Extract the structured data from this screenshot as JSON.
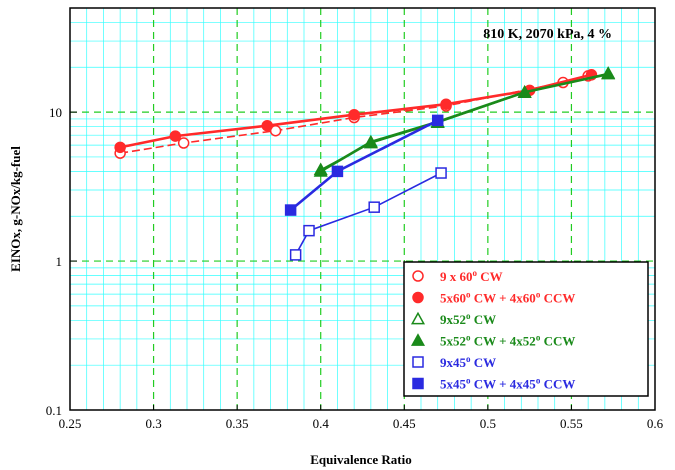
{
  "chart_data": {
    "type": "scatter",
    "title": "",
    "annotation": "810 K, 2070 kPa, 4 %",
    "xlabel": "Equivalence Ratio",
    "ylabel": "EINOx, g-NOx/kg-fuel",
    "xlim": [
      0.25,
      0.6
    ],
    "ylim": [
      0.1,
      50
    ],
    "yscale": "log",
    "grid": true,
    "x_ticks": [
      "0.25",
      "0.3",
      "0.35",
      "0.4",
      "0.45",
      "0.5",
      "0.55",
      "0.6"
    ],
    "y_ticks": [
      "0.1",
      "1",
      "10"
    ],
    "legend_position": "bottom-right",
    "series": [
      {
        "name": "9 x 60° CW",
        "color": "#ff2a2a",
        "marker": "circle-open",
        "line": "dashed",
        "points": [
          [
            0.28,
            5.3
          ],
          [
            0.318,
            6.2
          ],
          [
            0.373,
            7.5
          ],
          [
            0.42,
            9.2
          ],
          [
            0.475,
            11.0
          ],
          [
            0.545,
            15.8
          ],
          [
            0.56,
            17.5
          ]
        ]
      },
      {
        "name": "5x60° CW + 4x60° CCW",
        "color": "#ff2a2a",
        "marker": "circle-filled",
        "line": "solid",
        "points": [
          [
            0.28,
            5.8
          ],
          [
            0.313,
            6.9
          ],
          [
            0.368,
            8.1
          ],
          [
            0.42,
            9.6
          ],
          [
            0.475,
            11.3
          ],
          [
            0.525,
            14.0
          ],
          [
            0.562,
            17.8
          ]
        ]
      },
      {
        "name": "9x52° CW",
        "color": "#1a8a1a",
        "marker": "triangle-open",
        "line": "solid",
        "points": [
          [
            0.4,
            4.1
          ],
          [
            0.43,
            6.2
          ],
          [
            0.47,
            8.5
          ],
          [
            0.522,
            13.5
          ],
          [
            0.572,
            18.2
          ]
        ]
      },
      {
        "name": "5x52° CW + 4x52° CCW",
        "color": "#1a8a1a",
        "marker": "triangle-filled",
        "line": "solid",
        "points": [
          [
            0.4,
            4.0
          ],
          [
            0.43,
            6.3
          ],
          [
            0.47,
            8.6
          ],
          [
            0.522,
            13.6
          ],
          [
            0.572,
            18.0
          ]
        ]
      },
      {
        "name": "9x45° CW",
        "color": "#2a2ae0",
        "marker": "square-open",
        "line": "solid",
        "points": [
          [
            0.385,
            1.1
          ],
          [
            0.393,
            1.6
          ],
          [
            0.432,
            2.3
          ],
          [
            0.472,
            3.9
          ]
        ]
      },
      {
        "name": "5x45° CW + 4x45° CCW",
        "color": "#2a2ae0",
        "marker": "square-filled",
        "line": "solid",
        "points": [
          [
            0.382,
            2.2
          ],
          [
            0.41,
            4.0
          ],
          [
            0.47,
            8.8
          ]
        ]
      }
    ],
    "legend_labels": [
      {
        "pre": "9 x 60",
        "sup": "o",
        "post": " CW"
      },
      {
        "pre": "5x60",
        "sup": "o",
        "post": " CW + 4x60",
        "sup2": "o",
        "post2": " CCW"
      },
      {
        "pre": "9x52",
        "sup": "o",
        "post": " CW"
      },
      {
        "pre": "5x52",
        "sup": "o",
        "post": " CW + 4x52",
        "sup2": "o",
        "post2": " CCW"
      },
      {
        "pre": "9x45",
        "sup": "o",
        "post": " CW"
      },
      {
        "pre": "5x45",
        "sup": "o",
        "post": " CW + 4x45",
        "sup2": "o",
        "post2": " CCW"
      }
    ]
  }
}
